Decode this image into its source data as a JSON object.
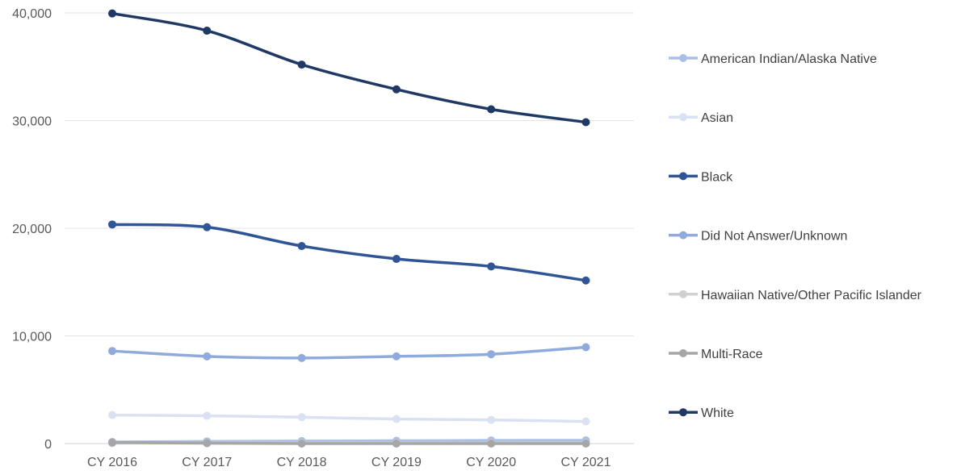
{
  "chart_data": {
    "type": "line",
    "title": "",
    "xlabel": "",
    "ylabel": "",
    "categories": [
      "CY 2016",
      "CY 2017",
      "CY 2018",
      "CY 2019",
      "CY 2020",
      "CY 2021"
    ],
    "y_ticks": [
      {
        "value": 0,
        "label": "0"
      },
      {
        "value": 10000,
        "label": "10,000"
      },
      {
        "value": 20000,
        "label": "20,000"
      },
      {
        "value": 30000,
        "label": "30,000"
      },
      {
        "value": 40000,
        "label": "40,000"
      }
    ],
    "ylim": [
      0,
      40000
    ],
    "grid": "horizontal",
    "legend_position": "right",
    "series": [
      {
        "name": "American Indian/Alaska Native",
        "color": "#a9c0e4",
        "values": [
          150,
          200,
          230,
          260,
          290,
          300
        ]
      },
      {
        "name": "Asian",
        "color": "#d9e1f2",
        "values": [
          2650,
          2580,
          2450,
          2280,
          2200,
          2050
        ]
      },
      {
        "name": "Black",
        "color": "#2f5597",
        "values": [
          20350,
          20100,
          18350,
          17150,
          16450,
          15150
        ]
      },
      {
        "name": "Did Not Answer/Unknown",
        "color": "#8faadc",
        "values": [
          8600,
          8100,
          7950,
          8100,
          8300,
          8950
        ]
      },
      {
        "name": "Hawaiian Native/Other Pacific Islander",
        "color": "#d0d0d0",
        "values": [
          50,
          50,
          50,
          50,
          50,
          50
        ]
      },
      {
        "name": "Multi-Race",
        "color": "#a6a6a6",
        "values": [
          100,
          40,
          0,
          0,
          0,
          0
        ]
      },
      {
        "name": "White",
        "color": "#1f3864",
        "values": [
          39950,
          38350,
          35200,
          32900,
          31050,
          29850
        ]
      }
    ]
  }
}
